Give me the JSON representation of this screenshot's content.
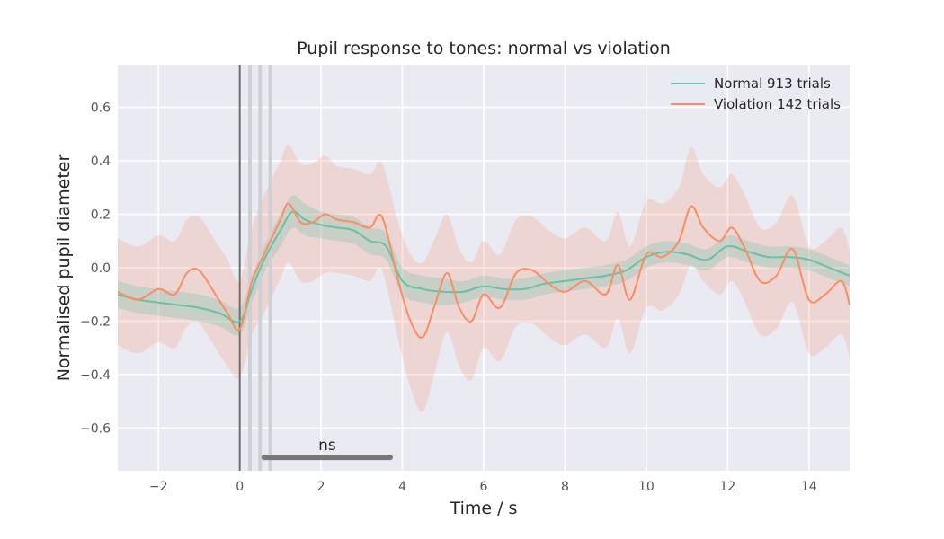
{
  "chart_data": {
    "type": "line",
    "title": "Pupil response to tones: normal vs violation",
    "xlabel": "Time / s",
    "ylabel": "Normalised pupil diameter",
    "xlim": [
      -3,
      15
    ],
    "ylim": [
      -0.76,
      0.76
    ],
    "xticks": [
      -2,
      0,
      2,
      4,
      6,
      8,
      10,
      12,
      14
    ],
    "xtick_labels": [
      "−2",
      "0",
      "2",
      "4",
      "6",
      "8",
      "10",
      "12",
      "14"
    ],
    "yticks": [
      0.6,
      0.4,
      0.2,
      0.0,
      -0.2,
      -0.4,
      -0.6
    ],
    "ytick_labels": [
      "0.6",
      "0.4",
      "0.2",
      "0.0",
      "−0.2",
      "−0.4",
      "−0.6"
    ],
    "grid": true,
    "legend_position": "top-right",
    "background_color": "#eaeaf2",
    "vertical_markers": [
      {
        "x": 0,
        "color": "#6e6e6e"
      },
      {
        "x": 0.25,
        "color": "#cfcfd6"
      },
      {
        "x": 0.5,
        "color": "#cfcfd6"
      },
      {
        "x": 0.75,
        "color": "#cfcfd6"
      }
    ],
    "significance": {
      "label": "ns",
      "x_start": 0.6,
      "x_end": 3.7,
      "y": -0.71,
      "color": "#777777"
    },
    "series": [
      {
        "name": "Normal 913 trials",
        "color": "#66c2a5",
        "x": [
          -3,
          -2.5,
          -2,
          -1.5,
          -1,
          -0.5,
          0,
          0.3,
          0.6,
          1,
          1.3,
          1.6,
          2,
          2.4,
          2.8,
          3.2,
          3.6,
          4,
          4.5,
          5,
          5.5,
          6,
          6.5,
          7,
          7.5,
          8,
          8.5,
          9,
          9.5,
          10,
          10.5,
          11,
          11.5,
          12,
          12.5,
          13,
          13.5,
          14,
          14.5,
          15
        ],
        "y": [
          -0.1,
          -0.12,
          -0.13,
          -0.14,
          -0.15,
          -0.17,
          -0.2,
          -0.08,
          0.03,
          0.14,
          0.21,
          0.18,
          0.16,
          0.15,
          0.14,
          0.1,
          0.08,
          -0.05,
          -0.08,
          -0.09,
          -0.09,
          -0.07,
          -0.08,
          -0.08,
          -0.06,
          -0.05,
          -0.04,
          -0.03,
          -0.01,
          0.04,
          0.06,
          0.05,
          0.03,
          0.08,
          0.06,
          0.04,
          0.04,
          0.03,
          0.0,
          -0.03
        ],
        "band_width": [
          0.05,
          0.05,
          0.05,
          0.05,
          0.05,
          0.05,
          0.05,
          0.05,
          0.05,
          0.06,
          0.06,
          0.06,
          0.05,
          0.05,
          0.05,
          0.05,
          0.05,
          0.05,
          0.05,
          0.05,
          0.04,
          0.04,
          0.04,
          0.04,
          0.04,
          0.04,
          0.04,
          0.04,
          0.04,
          0.04,
          0.04,
          0.04,
          0.04,
          0.04,
          0.04,
          0.04,
          0.04,
          0.04,
          0.04,
          0.04
        ]
      },
      {
        "name": "Violation 142 trials",
        "color": "#fc8d62",
        "x": [
          -3,
          -2.5,
          -2,
          -1.6,
          -1.3,
          -1,
          -0.6,
          -0.3,
          0,
          0.3,
          0.6,
          1,
          1.2,
          1.5,
          1.8,
          2.1,
          2.4,
          2.8,
          3.2,
          3.5,
          3.9,
          4.2,
          4.5,
          4.8,
          5.1,
          5.4,
          5.7,
          6,
          6.4,
          6.8,
          7.2,
          7.6,
          8,
          8.5,
          9,
          9.3,
          9.6,
          10,
          10.4,
          10.8,
          11.1,
          11.4,
          11.8,
          12.1,
          12.4,
          12.8,
          13.2,
          13.6,
          14,
          14.4,
          14.8,
          15
        ],
        "y": [
          -0.09,
          -0.12,
          -0.08,
          -0.1,
          -0.02,
          -0.01,
          -0.1,
          -0.17,
          -0.23,
          -0.05,
          0.05,
          0.18,
          0.24,
          0.17,
          0.17,
          0.2,
          0.18,
          0.17,
          0.15,
          0.19,
          -0.05,
          -0.2,
          -0.26,
          -0.14,
          -0.02,
          -0.15,
          -0.2,
          -0.1,
          -0.15,
          -0.02,
          -0.01,
          -0.06,
          -0.09,
          -0.05,
          -0.1,
          0.01,
          -0.12,
          0.05,
          0.04,
          0.1,
          0.23,
          0.15,
          0.1,
          0.15,
          0.08,
          -0.05,
          -0.03,
          0.07,
          -0.12,
          -0.1,
          -0.05,
          -0.14
        ],
        "band_width": [
          0.2,
          0.2,
          0.2,
          0.2,
          0.2,
          0.2,
          0.2,
          0.2,
          0.18,
          0.2,
          0.22,
          0.22,
          0.22,
          0.22,
          0.22,
          0.22,
          0.2,
          0.2,
          0.2,
          0.2,
          0.22,
          0.25,
          0.28,
          0.25,
          0.22,
          0.22,
          0.22,
          0.2,
          0.2,
          0.2,
          0.2,
          0.2,
          0.2,
          0.2,
          0.2,
          0.2,
          0.2,
          0.2,
          0.2,
          0.2,
          0.22,
          0.2,
          0.2,
          0.2,
          0.2,
          0.2,
          0.2,
          0.2,
          0.2,
          0.2,
          0.2,
          0.2
        ]
      }
    ]
  }
}
